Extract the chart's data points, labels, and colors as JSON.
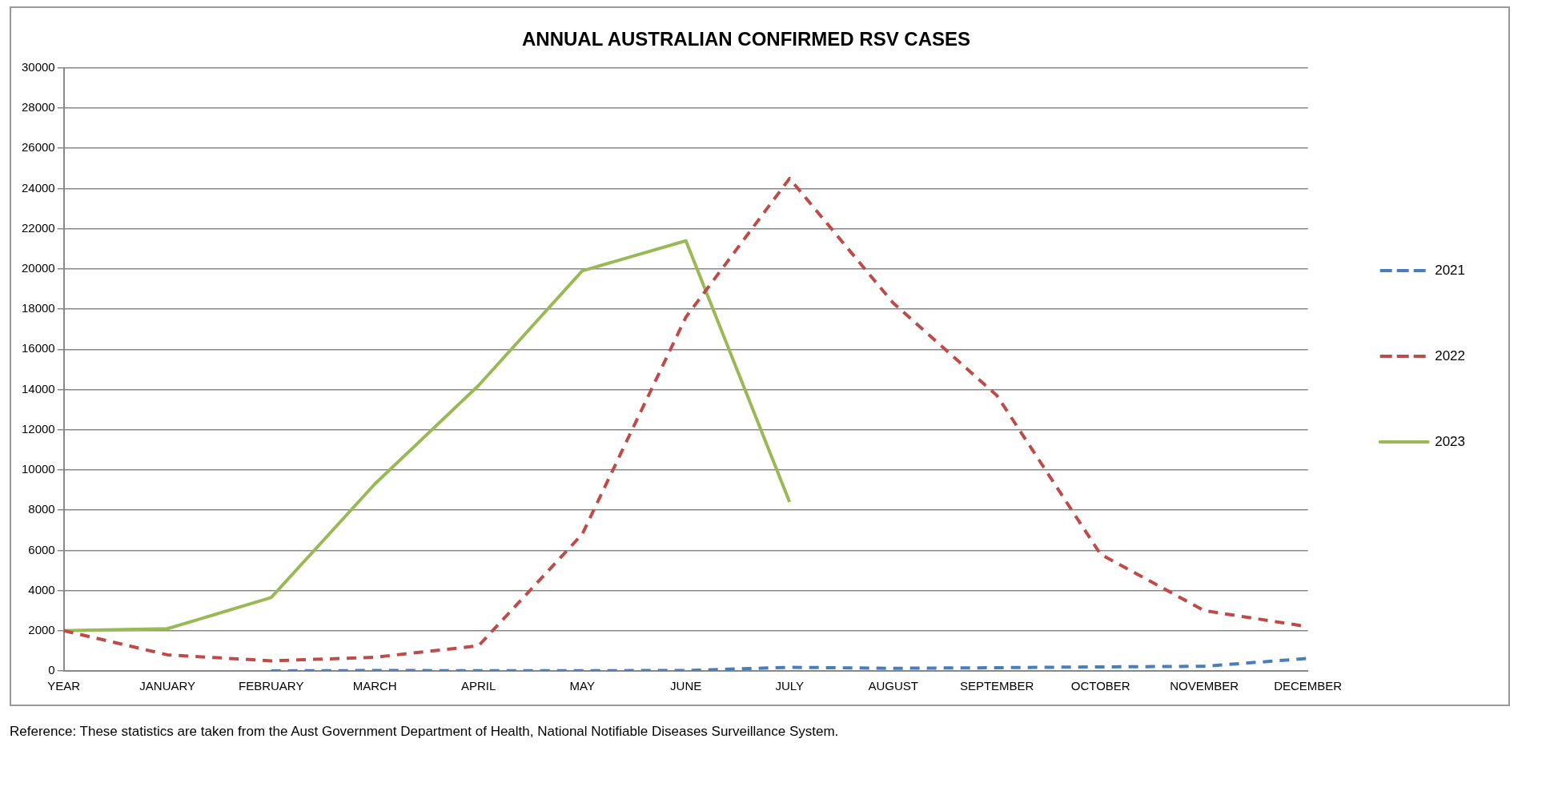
{
  "chart_data": {
    "type": "line",
    "title": "ANNUAL AUSTRALIAN CONFIRMED RSV CASES",
    "categories": [
      "YEAR",
      "JANUARY",
      "FEBRUARY",
      "MARCH",
      "APRIL",
      "MAY",
      "JUNE",
      "JULY",
      "AUGUST",
      "SEPTEMBER",
      "OCTOBER",
      "NOVEMBER",
      "DECEMBER"
    ],
    "series": [
      {
        "name": "2021",
        "color": "#4a7ebb",
        "line_style": "dashed",
        "values": [
          null,
          null,
          0,
          20,
          10,
          10,
          20,
          180,
          130,
          160,
          200,
          230,
          620
        ]
      },
      {
        "name": "2022",
        "color": "#be4b48",
        "line_style": "dashed",
        "values": [
          2000,
          800,
          500,
          680,
          1250,
          6800,
          17600,
          24500,
          18300,
          13700,
          5800,
          3000,
          2200
        ]
      },
      {
        "name": "2023",
        "color": "#98b954",
        "line_style": "solid",
        "values": [
          2000,
          2100,
          3650,
          9300,
          14200,
          19900,
          21400,
          8400,
          null,
          null,
          null,
          null,
          null
        ]
      }
    ],
    "ylim": [
      0,
      30000
    ],
    "yticks": [
      0,
      2000,
      4000,
      6000,
      8000,
      10000,
      12000,
      14000,
      16000,
      18000,
      20000,
      22000,
      24000,
      26000,
      28000,
      30000
    ],
    "grid": "y",
    "legend": "right",
    "marker": "none",
    "annotations": [
      "Reference: These statistics are taken from the Aust Government Department of Health, National Notifiable Diseases Surveillance System."
    ]
  }
}
